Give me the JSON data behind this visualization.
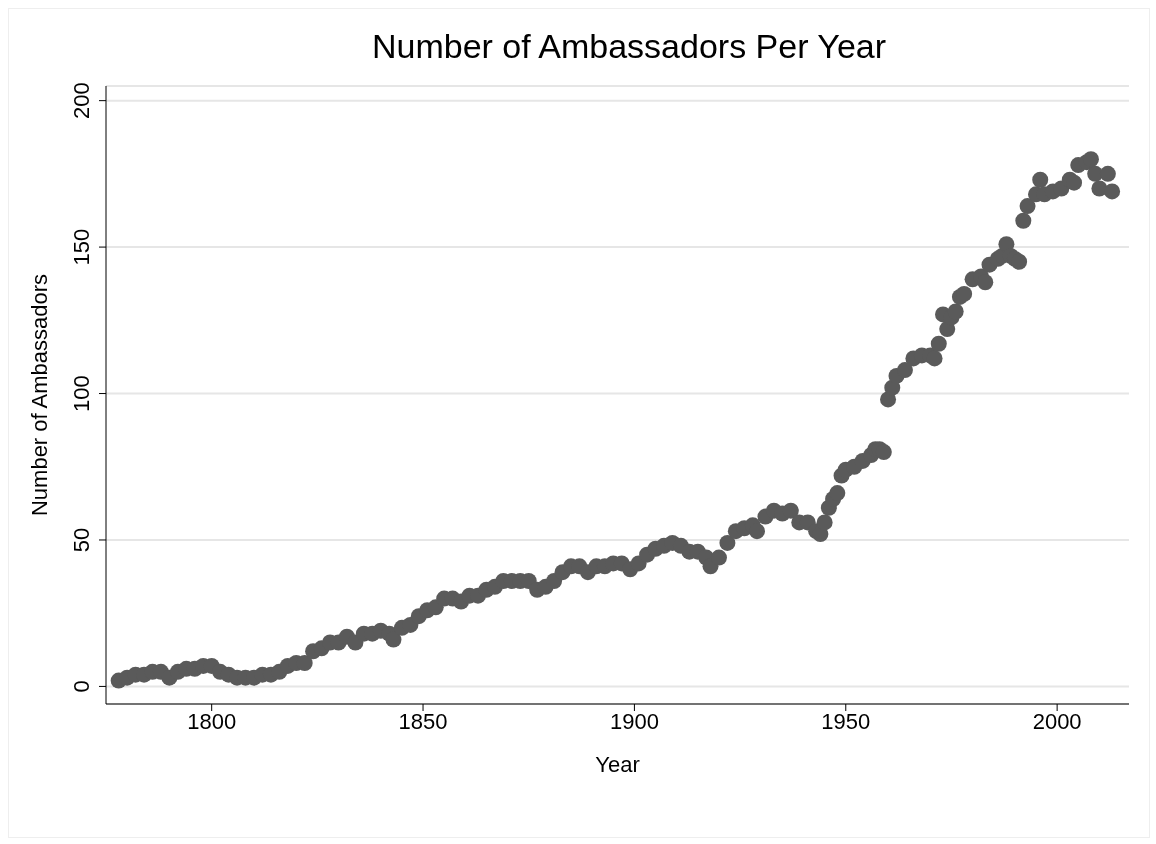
{
  "chart_data": {
    "type": "scatter",
    "title": "Number of Ambassadors Per Year",
    "xlabel": "Year",
    "ylabel": "Number of Ambassadors",
    "x": [
      1778,
      1780,
      1782,
      1784,
      1786,
      1788,
      1790,
      1792,
      1794,
      1796,
      1798,
      1800,
      1802,
      1804,
      1806,
      1808,
      1810,
      1812,
      1814,
      1816,
      1818,
      1820,
      1822,
      1824,
      1826,
      1828,
      1830,
      1832,
      1834,
      1836,
      1838,
      1840,
      1842,
      1843,
      1845,
      1847,
      1849,
      1851,
      1853,
      1855,
      1857,
      1859,
      1861,
      1863,
      1865,
      1867,
      1869,
      1871,
      1873,
      1875,
      1877,
      1879,
      1881,
      1883,
      1885,
      1887,
      1889,
      1891,
      1893,
      1895,
      1897,
      1899,
      1901,
      1903,
      1905,
      1907,
      1909,
      1911,
      1913,
      1915,
      1917,
      1918,
      1920,
      1922,
      1924,
      1926,
      1928,
      1929,
      1931,
      1933,
      1935,
      1937,
      1939,
      1941,
      1943,
      1944,
      1945,
      1946,
      1947,
      1948,
      1949,
      1950,
      1952,
      1954,
      1956,
      1957,
      1958,
      1959,
      1960,
      1961,
      1962,
      1964,
      1966,
      1968,
      1970,
      1971,
      1972,
      1973,
      1974,
      1975,
      1976,
      1977,
      1978,
      1980,
      1982,
      1983,
      1984,
      1986,
      1987,
      1988,
      1989,
      1990,
      1991,
      1992,
      1993,
      1995,
      1996,
      1997,
      1999,
      2001,
      2003,
      2004,
      2005,
      2007,
      2008,
      2009,
      2010,
      2012,
      2013
    ],
    "series": [
      {
        "color": "#5a5a5a",
        "values": [
          2,
          3,
          4,
          4,
          5,
          5,
          3,
          5,
          6,
          6,
          7,
          7,
          5,
          4,
          3,
          3,
          3,
          4,
          4,
          5,
          7,
          8,
          8,
          12,
          13,
          15,
          15,
          17,
          15,
          18,
          18,
          19,
          18,
          16,
          20,
          21,
          24,
          26,
          27,
          30,
          30,
          29,
          31,
          31,
          33,
          34,
          36,
          36,
          36,
          36,
          33,
          34,
          36,
          39,
          41,
          41,
          39,
          41,
          41,
          42,
          42,
          40,
          42,
          45,
          47,
          48,
          49,
          48,
          46,
          46,
          44,
          41,
          44,
          49,
          53,
          54,
          55,
          53,
          58,
          60,
          59,
          60,
          56,
          56,
          53,
          52,
          56,
          61,
          64,
          66,
          72,
          74,
          75,
          77,
          79,
          81,
          81,
          80,
          98,
          102,
          106,
          108,
          112,
          113,
          113,
          112,
          117,
          127,
          122,
          126,
          128,
          133,
          134,
          139,
          140,
          138,
          144,
          146,
          147,
          151,
          147,
          146,
          145,
          159,
          164,
          168,
          173,
          168,
          169,
          170,
          173,
          172,
          178,
          179,
          180,
          175,
          170,
          175,
          169
        ]
      }
    ],
    "xlim": [
      1775,
      2017
    ],
    "xticks": [
      1800,
      1850,
      1900,
      1950,
      2000
    ],
    "ylim": [
      -6,
      205
    ],
    "yticks": [
      0,
      50,
      100,
      150,
      200
    ],
    "grid": "y",
    "marker": "circle"
  }
}
